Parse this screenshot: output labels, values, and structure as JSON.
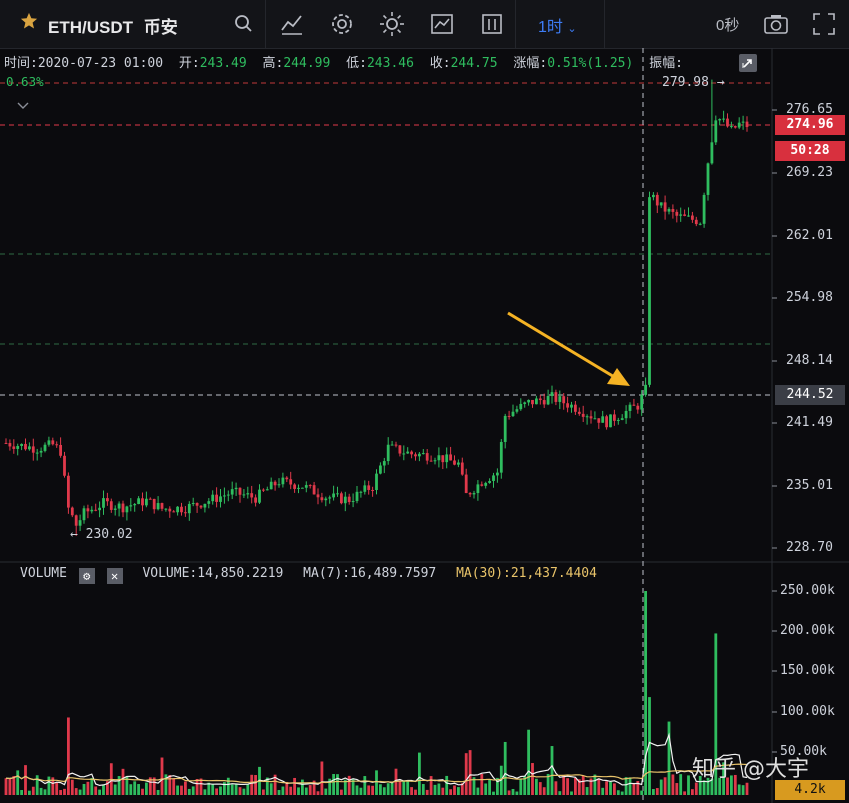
{
  "header": {
    "symbol": "ETH/USDT",
    "exchange": "币安",
    "interval": "1时",
    "countdown": "0秒"
  },
  "ohlc": {
    "time_label": "时间:",
    "time": "2020-07-23 01:00",
    "open_label": "开:",
    "open": "243.49",
    "high_label": "高:",
    "high": "244.99",
    "low_label": "低:",
    "low": "243.46",
    "close_label": "收:",
    "close": "244.75",
    "change_label": "涨幅:",
    "change": "0.51%(1.25)",
    "amplitude_label": "振幅:",
    "amplitude_pct": "0.63%"
  },
  "price_axis": {
    "ticks": [
      "276.65",
      "269.23",
      "262.01",
      "254.98",
      "248.14",
      "241.49",
      "235.01",
      "228.70"
    ],
    "last_price": "274.96",
    "bar_countdown": "50:28",
    "crosshair_price": "244.52",
    "max_label": "279.98",
    "min_label": "230.02"
  },
  "volume_panel": {
    "title": "VOLUME",
    "volume_label": "VOLUME:",
    "volume": "14,850.2219",
    "ma7_label": "MA(7):",
    "ma7": "16,489.7597",
    "ma30_label": "MA(30):",
    "ma30": "21,437.4404",
    "ticks": [
      "250.00k",
      "200.00k",
      "150.00k",
      "100.00k",
      "50.00k"
    ],
    "last_volume": "4.2k"
  },
  "watermark": "知乎 @大宇",
  "colors": {
    "up": "#2fbd5f",
    "down": "#e0394b",
    "accent": "#3d7cf5",
    "arrow": "#f5b324",
    "ma30": "#e9c46a"
  },
  "icons": [
    "star-icon",
    "search-icon",
    "indicator-icon",
    "settings-icon",
    "theme-icon",
    "chart-style-icon",
    "layout-icon",
    "camera-icon",
    "fullscreen-icon"
  ]
}
